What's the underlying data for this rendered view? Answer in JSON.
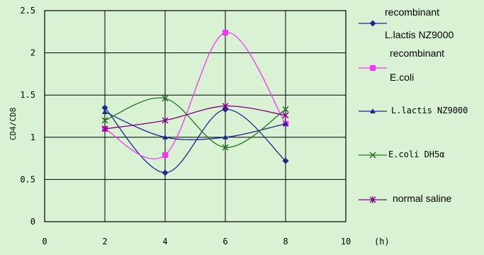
{
  "chart_data": {
    "type": "line",
    "ylabel": "CD4/CD8",
    "xunit": "(h)",
    "xlim": [
      0,
      10
    ],
    "ylim": [
      0,
      2.5
    ],
    "xticks": [
      "0",
      "2",
      "4",
      "6",
      "8",
      "10"
    ],
    "yticks": [
      "0",
      "0.5",
      "1",
      "1.5",
      "2",
      "2.5"
    ],
    "x": [
      2,
      4,
      6,
      8
    ],
    "grid": true,
    "legend": "right",
    "series": [
      {
        "name": "recombinant L.lactis NZ9000",
        "values": [
          1.35,
          0.58,
          1.33,
          0.72
        ],
        "color": "#1a2a8c",
        "marker": "diamond"
      },
      {
        "name": "recombinant E.coli",
        "values": [
          1.1,
          0.79,
          2.24,
          1.16
        ],
        "color": "#ff33ff",
        "marker": "square"
      },
      {
        "name": "L.lactis NZ9000",
        "values": [
          1.3,
          1.0,
          1.0,
          1.16
        ],
        "color": "#1a2a8c",
        "marker": "triangle"
      },
      {
        "name": "E.coli DH5α",
        "values": [
          1.2,
          1.46,
          0.88,
          1.33
        ],
        "color": "#227722",
        "marker": "x"
      },
      {
        "name": "normal saline",
        "values": [
          1.1,
          1.2,
          1.37,
          1.26
        ],
        "color": "#800080",
        "marker": "star"
      }
    ]
  },
  "legend": {
    "s0_line1": "recombinant",
    "s0_line2": "L.lactis NZ9000",
    "s1_line1": "recombinant",
    "s1_line2": "E.coli",
    "s2": "L.lactis NZ9000",
    "s3": "E.coli DH5α",
    "s4": "normal saline"
  }
}
